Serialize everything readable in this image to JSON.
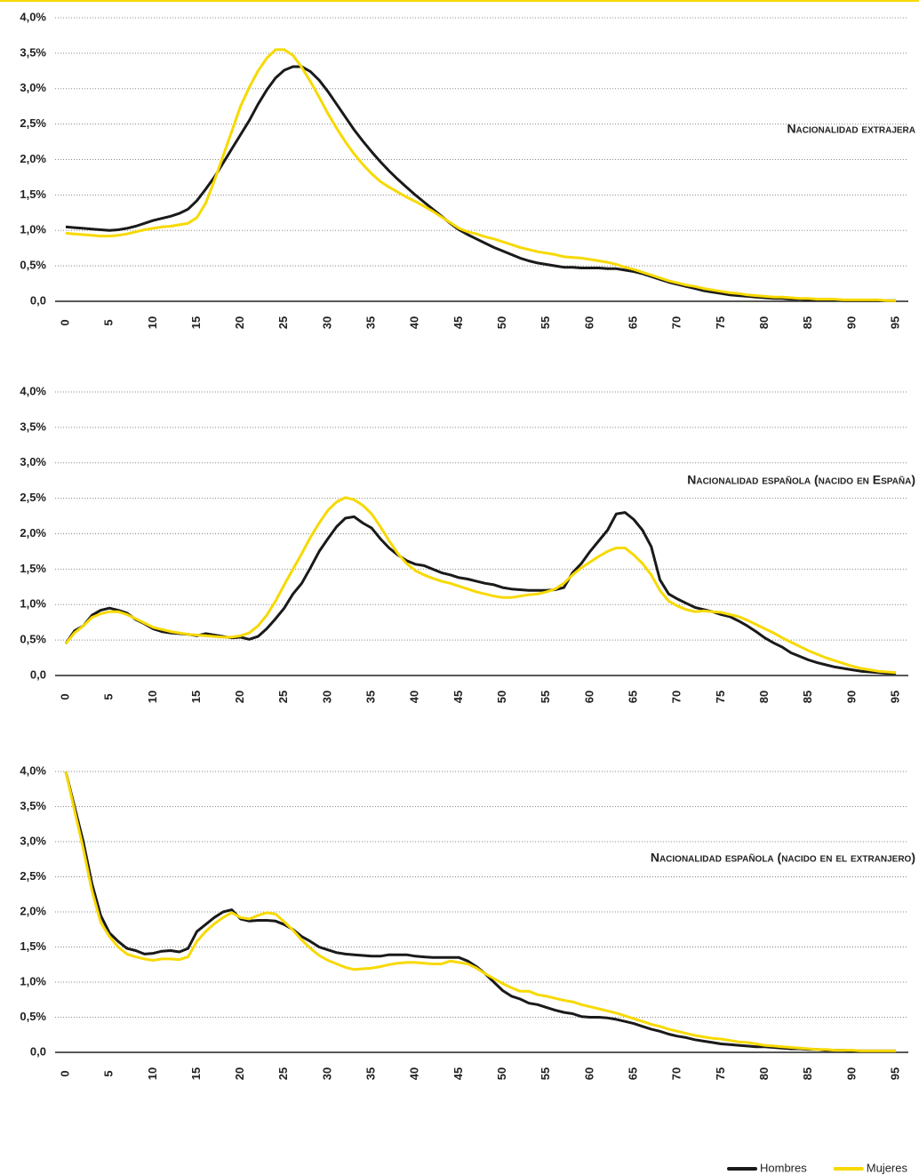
{
  "chart_data": [
    {
      "type": "line",
      "annotation": "Nacionalidad extrajera",
      "x": [
        0,
        1,
        2,
        3,
        4,
        5,
        6,
        7,
        8,
        9,
        10,
        11,
        12,
        13,
        14,
        15,
        16,
        17,
        18,
        19,
        20,
        21,
        22,
        23,
        24,
        25,
        26,
        27,
        28,
        29,
        30,
        31,
        32,
        33,
        34,
        35,
        36,
        37,
        38,
        39,
        40,
        41,
        42,
        43,
        44,
        45,
        46,
        47,
        48,
        49,
        50,
        51,
        52,
        53,
        54,
        55,
        56,
        57,
        58,
        59,
        60,
        61,
        62,
        63,
        64,
        65,
        66,
        67,
        68,
        69,
        70,
        71,
        72,
        73,
        74,
        75,
        76,
        77,
        78,
        79,
        80,
        81,
        82,
        83,
        84,
        85,
        86,
        87,
        88,
        89,
        90,
        91,
        92,
        93,
        94,
        95
      ],
      "series": [
        {
          "name": "Hombres",
          "color": "#1a1a1a",
          "values": [
            1.05,
            1.04,
            1.03,
            1.02,
            1.01,
            1.0,
            1.01,
            1.03,
            1.06,
            1.1,
            1.14,
            1.17,
            1.2,
            1.24,
            1.3,
            1.42,
            1.58,
            1.75,
            1.95,
            2.15,
            2.35,
            2.55,
            2.78,
            2.98,
            3.15,
            3.26,
            3.31,
            3.31,
            3.24,
            3.12,
            2.96,
            2.78,
            2.6,
            2.42,
            2.26,
            2.11,
            1.97,
            1.84,
            1.72,
            1.61,
            1.5,
            1.4,
            1.3,
            1.2,
            1.1,
            1.01,
            0.94,
            0.88,
            0.82,
            0.76,
            0.71,
            0.66,
            0.61,
            0.57,
            0.54,
            0.52,
            0.5,
            0.48,
            0.48,
            0.47,
            0.47,
            0.47,
            0.46,
            0.46,
            0.44,
            0.42,
            0.39,
            0.35,
            0.31,
            0.27,
            0.24,
            0.21,
            0.18,
            0.15,
            0.13,
            0.11,
            0.09,
            0.08,
            0.07,
            0.06,
            0.05,
            0.04,
            0.04,
            0.03,
            0.03,
            0.02,
            0.02,
            0.02,
            0.02,
            0.01,
            0.01,
            0.01,
            0.01,
            0.01,
            0.01,
            0.01
          ]
        },
        {
          "name": "Mujeres",
          "color": "#f7d900",
          "values": [
            0.96,
            0.95,
            0.94,
            0.93,
            0.92,
            0.92,
            0.93,
            0.95,
            0.98,
            1.01,
            1.03,
            1.05,
            1.06,
            1.08,
            1.1,
            1.18,
            1.38,
            1.7,
            2.05,
            2.4,
            2.75,
            3.02,
            3.25,
            3.43,
            3.55,
            3.55,
            3.47,
            3.3,
            3.1,
            2.88,
            2.65,
            2.44,
            2.25,
            2.08,
            1.93,
            1.8,
            1.69,
            1.61,
            1.54,
            1.47,
            1.41,
            1.34,
            1.27,
            1.19,
            1.11,
            1.03,
            0.98,
            0.95,
            0.91,
            0.88,
            0.84,
            0.8,
            0.76,
            0.73,
            0.7,
            0.68,
            0.66,
            0.63,
            0.62,
            0.61,
            0.59,
            0.57,
            0.55,
            0.52,
            0.48,
            0.45,
            0.41,
            0.37,
            0.33,
            0.29,
            0.26,
            0.23,
            0.21,
            0.18,
            0.16,
            0.14,
            0.12,
            0.11,
            0.09,
            0.08,
            0.07,
            0.06,
            0.06,
            0.05,
            0.04,
            0.04,
            0.03,
            0.03,
            0.03,
            0.02,
            0.02,
            0.02,
            0.02,
            0.02,
            0.01,
            0.01
          ]
        }
      ],
      "xlim": [
        0,
        95
      ],
      "xticks": [
        0,
        5,
        10,
        15,
        20,
        25,
        30,
        35,
        40,
        45,
        50,
        55,
        60,
        65,
        70,
        75,
        80,
        85,
        90,
        95
      ],
      "ylim": [
        0,
        4
      ],
      "yticks": [
        {
          "value": 0,
          "label": "0,0"
        },
        {
          "value": 0.5,
          "label": "0,5%"
        },
        {
          "value": 1,
          "label": "1,0%"
        },
        {
          "value": 1.5,
          "label": "1,5%"
        },
        {
          "value": 2,
          "label": "2,0%"
        },
        {
          "value": 2.5,
          "label": "2,5%"
        },
        {
          "value": 3,
          "label": "3,0%"
        },
        {
          "value": 3.5,
          "label": "3,5%"
        },
        {
          "value": 4,
          "label": "4,0%"
        }
      ],
      "grid": true
    },
    {
      "type": "line",
      "annotation": "Nacionalidad española (nacido en España)",
      "x": [
        0,
        1,
        2,
        3,
        4,
        5,
        6,
        7,
        8,
        9,
        10,
        11,
        12,
        13,
        14,
        15,
        16,
        17,
        18,
        19,
        20,
        21,
        22,
        23,
        24,
        25,
        26,
        27,
        28,
        29,
        30,
        31,
        32,
        33,
        34,
        35,
        36,
        37,
        38,
        39,
        40,
        41,
        42,
        43,
        44,
        45,
        46,
        47,
        48,
        49,
        50,
        51,
        52,
        53,
        54,
        55,
        56,
        57,
        58,
        59,
        60,
        61,
        62,
        63,
        64,
        65,
        66,
        67,
        68,
        69,
        70,
        71,
        72,
        73,
        74,
        75,
        76,
        77,
        78,
        79,
        80,
        81,
        82,
        83,
        84,
        85,
        86,
        87,
        88,
        89,
        90,
        91,
        92,
        93,
        94,
        95
      ],
      "series": [
        {
          "color": "#1a1a1a",
          "values": [
            0.45,
            0.63,
            0.7,
            0.85,
            0.92,
            0.95,
            0.92,
            0.88,
            0.79,
            0.73,
            0.66,
            0.62,
            0.6,
            0.59,
            0.58,
            0.56,
            0.59,
            0.57,
            0.55,
            0.53,
            0.54,
            0.51,
            0.55,
            0.66,
            0.8,
            0.95,
            1.15,
            1.3,
            1.52,
            1.75,
            1.93,
            2.1,
            2.22,
            2.24,
            2.15,
            2.08,
            1.93,
            1.8,
            1.7,
            1.62,
            1.57,
            1.55,
            1.5,
            1.45,
            1.42,
            1.38,
            1.36,
            1.33,
            1.3,
            1.28,
            1.24,
            1.22,
            1.21,
            1.2,
            1.2,
            1.2,
            1.21,
            1.24,
            1.45,
            1.58,
            1.75,
            1.9,
            2.05,
            2.28,
            2.3,
            2.2,
            2.05,
            1.82,
            1.35,
            1.15,
            1.08,
            1.02,
            0.96,
            0.93,
            0.9,
            0.86,
            0.83,
            0.77,
            0.7,
            0.62,
            0.53,
            0.46,
            0.4,
            0.32,
            0.27,
            0.22,
            0.18,
            0.15,
            0.12,
            0.1,
            0.08,
            0.06,
            0.05,
            0.04,
            0.03,
            0.03
          ]
        },
        {
          "color": "#f7d900",
          "values": [
            0.45,
            0.6,
            0.7,
            0.82,
            0.87,
            0.9,
            0.9,
            0.86,
            0.8,
            0.74,
            0.68,
            0.65,
            0.62,
            0.6,
            0.58,
            0.57,
            0.56,
            0.55,
            0.54,
            0.54,
            0.56,
            0.6,
            0.7,
            0.85,
            1.05,
            1.28,
            1.5,
            1.72,
            1.95,
            2.15,
            2.33,
            2.45,
            2.51,
            2.48,
            2.4,
            2.28,
            2.1,
            1.9,
            1.72,
            1.58,
            1.48,
            1.42,
            1.37,
            1.33,
            1.3,
            1.26,
            1.22,
            1.18,
            1.15,
            1.12,
            1.1,
            1.1,
            1.12,
            1.14,
            1.15,
            1.18,
            1.22,
            1.3,
            1.42,
            1.52,
            1.6,
            1.68,
            1.75,
            1.8,
            1.8,
            1.7,
            1.58,
            1.42,
            1.2,
            1.05,
            0.98,
            0.93,
            0.9,
            0.91,
            0.9,
            0.89,
            0.86,
            0.83,
            0.78,
            0.72,
            0.66,
            0.6,
            0.53,
            0.47,
            0.41,
            0.35,
            0.3,
            0.25,
            0.21,
            0.17,
            0.13,
            0.1,
            0.08,
            0.06,
            0.05,
            0.04
          ]
        }
      ],
      "xlim": [
        0,
        95
      ],
      "xticks": [
        0,
        5,
        10,
        15,
        20,
        25,
        30,
        35,
        40,
        45,
        50,
        55,
        60,
        65,
        70,
        75,
        80,
        85,
        90,
        95
      ],
      "ylim": [
        0,
        4
      ],
      "yticks": [
        {
          "value": 0,
          "label": "0,0"
        },
        {
          "value": 0.5,
          "label": "0,5%"
        },
        {
          "value": 1,
          "label": "1,0%"
        },
        {
          "value": 1.5,
          "label": "1,5%"
        },
        {
          "value": 2,
          "label": "2,0%"
        },
        {
          "value": 2.5,
          "label": "2,5%"
        },
        {
          "value": 3,
          "label": "3,0%"
        },
        {
          "value": 3.5,
          "label": "3,5%"
        },
        {
          "value": 4,
          "label": "4,0%"
        }
      ],
      "grid": true
    },
    {
      "type": "line",
      "annotation": "Nacionalidad española (nacido en el extranjero)",
      "x": [
        0,
        1,
        2,
        3,
        4,
        5,
        6,
        7,
        8,
        9,
        10,
        11,
        12,
        13,
        14,
        15,
        16,
        17,
        18,
        19,
        20,
        21,
        22,
        23,
        24,
        25,
        26,
        27,
        28,
        29,
        30,
        31,
        32,
        33,
        34,
        35,
        36,
        37,
        38,
        39,
        40,
        41,
        42,
        43,
        44,
        45,
        46,
        47,
        48,
        49,
        50,
        51,
        52,
        53,
        54,
        55,
        56,
        57,
        58,
        59,
        60,
        61,
        62,
        63,
        64,
        65,
        66,
        67,
        68,
        69,
        70,
        71,
        72,
        73,
        74,
        75,
        76,
        77,
        78,
        79,
        80,
        81,
        82,
        83,
        84,
        85,
        86,
        87,
        88,
        89,
        90,
        91,
        92,
        93,
        94,
        95
      ],
      "series": [
        {
          "color": "#1a1a1a",
          "values": [
            4.0,
            3.5,
            3.0,
            2.4,
            1.95,
            1.7,
            1.58,
            1.48,
            1.45,
            1.4,
            1.41,
            1.44,
            1.45,
            1.43,
            1.48,
            1.72,
            1.82,
            1.92,
            2.0,
            2.03,
            1.9,
            1.87,
            1.88,
            1.88,
            1.87,
            1.82,
            1.75,
            1.65,
            1.58,
            1.5,
            1.46,
            1.42,
            1.4,
            1.39,
            1.38,
            1.37,
            1.37,
            1.39,
            1.39,
            1.39,
            1.37,
            1.36,
            1.35,
            1.35,
            1.35,
            1.35,
            1.3,
            1.22,
            1.12,
            1.0,
            0.88,
            0.8,
            0.76,
            0.7,
            0.68,
            0.64,
            0.6,
            0.57,
            0.55,
            0.51,
            0.5,
            0.5,
            0.49,
            0.47,
            0.44,
            0.41,
            0.37,
            0.33,
            0.3,
            0.26,
            0.23,
            0.21,
            0.18,
            0.16,
            0.14,
            0.12,
            0.11,
            0.1,
            0.09,
            0.08,
            0.08,
            0.07,
            0.06,
            0.05,
            0.05,
            0.04,
            0.04,
            0.03,
            0.03,
            0.03,
            0.02,
            0.02,
            0.02,
            0.02,
            0.02,
            0.02
          ]
        },
        {
          "color": "#f7d900",
          "values": [
            4.0,
            3.45,
            2.9,
            2.3,
            1.85,
            1.65,
            1.5,
            1.4,
            1.36,
            1.33,
            1.31,
            1.33,
            1.33,
            1.32,
            1.36,
            1.58,
            1.72,
            1.83,
            1.92,
            1.99,
            1.92,
            1.9,
            1.95,
            1.99,
            1.97,
            1.86,
            1.74,
            1.6,
            1.48,
            1.38,
            1.31,
            1.26,
            1.21,
            1.18,
            1.19,
            1.2,
            1.22,
            1.25,
            1.27,
            1.28,
            1.28,
            1.27,
            1.26,
            1.26,
            1.3,
            1.28,
            1.26,
            1.2,
            1.12,
            1.05,
            0.98,
            0.92,
            0.87,
            0.87,
            0.82,
            0.8,
            0.77,
            0.74,
            0.72,
            0.68,
            0.65,
            0.62,
            0.59,
            0.56,
            0.52,
            0.48,
            0.44,
            0.4,
            0.37,
            0.33,
            0.3,
            0.27,
            0.24,
            0.22,
            0.2,
            0.19,
            0.17,
            0.15,
            0.14,
            0.12,
            0.1,
            0.09,
            0.08,
            0.07,
            0.06,
            0.05,
            0.04,
            0.04,
            0.03,
            0.03,
            0.03,
            0.02,
            0.02,
            0.02,
            0.02,
            0.02
          ]
        }
      ],
      "xlim": [
        0,
        95
      ],
      "xticks": [
        0,
        5,
        10,
        15,
        20,
        25,
        30,
        35,
        40,
        45,
        50,
        55,
        60,
        65,
        70,
        75,
        80,
        85,
        90,
        95
      ],
      "ylim": [
        0,
        4
      ],
      "yticks": [
        {
          "value": 0,
          "label": "0,0"
        },
        {
          "value": 0.5,
          "label": "0,5%"
        },
        {
          "value": 1,
          "label": "1,0%"
        },
        {
          "value": 1.5,
          "label": "1,5%"
        },
        {
          "value": 2,
          "label": "2,0%"
        },
        {
          "value": 2.5,
          "label": "2,5%"
        },
        {
          "value": 3,
          "label": "3,0%"
        },
        {
          "value": 3.5,
          "label": "3,5%"
        },
        {
          "value": 4,
          "label": "4,0%"
        }
      ],
      "grid": true
    }
  ]
}
